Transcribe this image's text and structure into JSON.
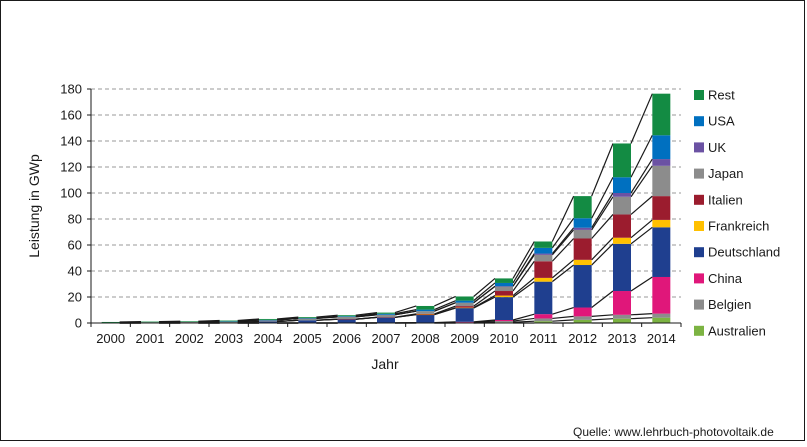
{
  "chart_data": {
    "type": "bar",
    "stacked": true,
    "title": "",
    "xlabel": "Jahr",
    "ylabel": "Leistung in GWp",
    "ylim": [
      0,
      180
    ],
    "yticks": [
      0,
      20,
      40,
      60,
      80,
      100,
      120,
      140,
      160,
      180
    ],
    "grid": "horizontal dashed",
    "legend_position": "right",
    "connector_lines": true,
    "categories": [
      "2000",
      "2001",
      "2002",
      "2003",
      "2004",
      "2005",
      "2006",
      "2007",
      "2008",
      "2009",
      "2010",
      "2011",
      "2012",
      "2013",
      "2014"
    ],
    "series": [
      {
        "name": "Australien",
        "color": "#7cb342",
        "values": [
          0,
          0,
          0,
          0,
          0,
          0,
          0,
          0,
          0,
          0,
          0.6,
          1.4,
          2.4,
          3.3,
          4.1
        ]
      },
      {
        "name": "Belgien",
        "color": "#8c8c8c",
        "values": [
          0,
          0,
          0,
          0,
          0,
          0,
          0,
          0,
          0.1,
          0.6,
          0.9,
          2.1,
          2.7,
          3.0,
          3.1
        ]
      },
      {
        "name": "China",
        "color": "#e0177a",
        "values": [
          0,
          0,
          0,
          0,
          0,
          0,
          0,
          0.1,
          0.2,
          0.3,
          0.8,
          3.3,
          6.8,
          18.3,
          28.2
        ]
      },
      {
        "name": "Deutschland",
        "color": "#1f3f8f",
        "values": [
          0.1,
          0.2,
          0.3,
          0.4,
          1.1,
          2.1,
          2.9,
          4.2,
          6.1,
          10.6,
          17.6,
          25.0,
          32.7,
          36.3,
          38.2
        ]
      },
      {
        "name": "Frankreich",
        "color": "#ffc000",
        "values": [
          0,
          0,
          0,
          0,
          0,
          0,
          0,
          0,
          0.1,
          0.3,
          1.2,
          2.9,
          4.0,
          4.7,
          5.7
        ]
      },
      {
        "name": "Italien",
        "color": "#9b1c2e",
        "values": [
          0,
          0,
          0,
          0,
          0,
          0,
          0.1,
          0.1,
          0.5,
          1.2,
          3.5,
          12.8,
          16.4,
          17.9,
          18.3
        ]
      },
      {
        "name": "Japan",
        "color": "#8c8c8c",
        "values": [
          0.3,
          0.4,
          0.6,
          0.8,
          1.1,
          1.4,
          1.7,
          1.9,
          2.1,
          2.6,
          3.6,
          4.9,
          6.6,
          13.6,
          23.3
        ]
      },
      {
        "name": "UK",
        "color": "#6b52a3",
        "values": [
          0,
          0,
          0,
          0,
          0,
          0,
          0,
          0,
          0,
          0,
          0.1,
          1.0,
          1.7,
          2.9,
          5.2
        ]
      },
      {
        "name": "USA",
        "color": "#0070c0",
        "values": [
          0,
          0,
          0,
          0.1,
          0.2,
          0.3,
          0.5,
          0.8,
          1.2,
          1.6,
          2.5,
          4.4,
          7.3,
          12.1,
          18.3
        ]
      },
      {
        "name": "Rest",
        "color": "#138b43",
        "values": [
          0.4,
          0.5,
          0.5,
          0.6,
          0.7,
          0.7,
          0.8,
          0.9,
          2.8,
          3.2,
          3.5,
          4.9,
          17.0,
          26.0,
          32.0
        ]
      }
    ]
  },
  "source_text": "Quelle: www.lehrbuch-photovoltaik.de"
}
